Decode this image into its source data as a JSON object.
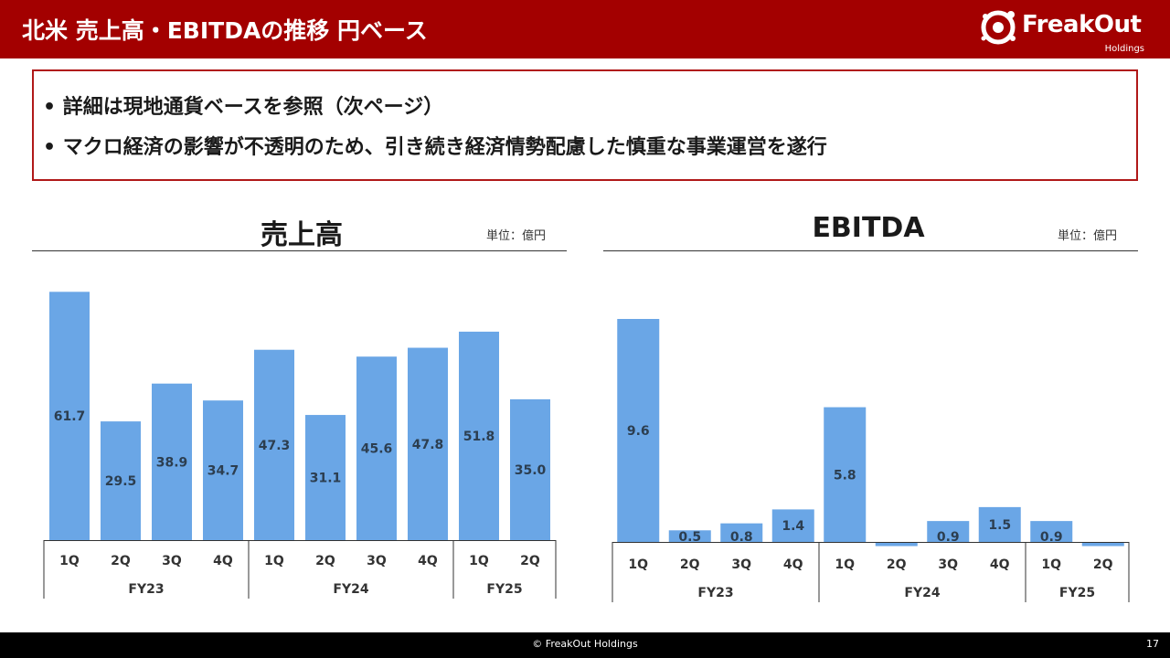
{
  "header": {
    "title": "北米 売上高・EBITDAの推移 円ベース",
    "logo_text": "FreakOut",
    "logo_sub": "Holdings"
  },
  "notice": {
    "items": [
      "詳細は現地通貨ベースを参照（次ページ）",
      "マクロ経済の影響が不透明のため、引き続き経済情勢配慮した慎重な事業運営を遂行"
    ]
  },
  "colors": {
    "header": "#a30000",
    "bar": "#6aa6e6",
    "border": "#b01818"
  },
  "chart_data": [
    {
      "type": "bar",
      "title": "売上高",
      "unit_label": "単位：億円",
      "categories": [
        "1Q",
        "2Q",
        "3Q",
        "4Q",
        "1Q",
        "2Q",
        "3Q",
        "4Q",
        "1Q",
        "2Q"
      ],
      "groups": [
        {
          "label": "FY23",
          "count": 4
        },
        {
          "label": "FY24",
          "count": 4
        },
        {
          "label": "FY25",
          "count": 2
        }
      ],
      "values": [
        61.7,
        29.5,
        38.9,
        34.7,
        47.3,
        31.1,
        45.6,
        47.8,
        51.8,
        35.0
      ],
      "value_labels": [
        "61.7",
        "29.5",
        "38.9",
        "34.7",
        "47.3",
        "31.1",
        "45.6",
        "47.8",
        "51.8",
        "35.0"
      ],
      "ylim": [
        0,
        62
      ]
    },
    {
      "type": "bar",
      "title": "EBITDA",
      "unit_label": "単位：億円",
      "categories": [
        "1Q",
        "2Q",
        "3Q",
        "4Q",
        "1Q",
        "2Q",
        "3Q",
        "4Q",
        "1Q",
        "2Q"
      ],
      "groups": [
        {
          "label": "FY23",
          "count": 4
        },
        {
          "label": "FY24",
          "count": 4
        },
        {
          "label": "FY25",
          "count": 2
        }
      ],
      "values": [
        9.6,
        0.5,
        0.8,
        1.4,
        5.8,
        -0.1,
        0.9,
        1.5,
        0.9,
        -0.1
      ],
      "value_labels": [
        "9.6",
        "0.5",
        "0.8",
        "1.4",
        "5.8",
        "",
        "0.9",
        "1.5",
        "0.9",
        ""
      ],
      "ylim": [
        0,
        9.6
      ]
    }
  ],
  "footer": {
    "copyright": "© FreakOut Holdings",
    "page": "17"
  }
}
